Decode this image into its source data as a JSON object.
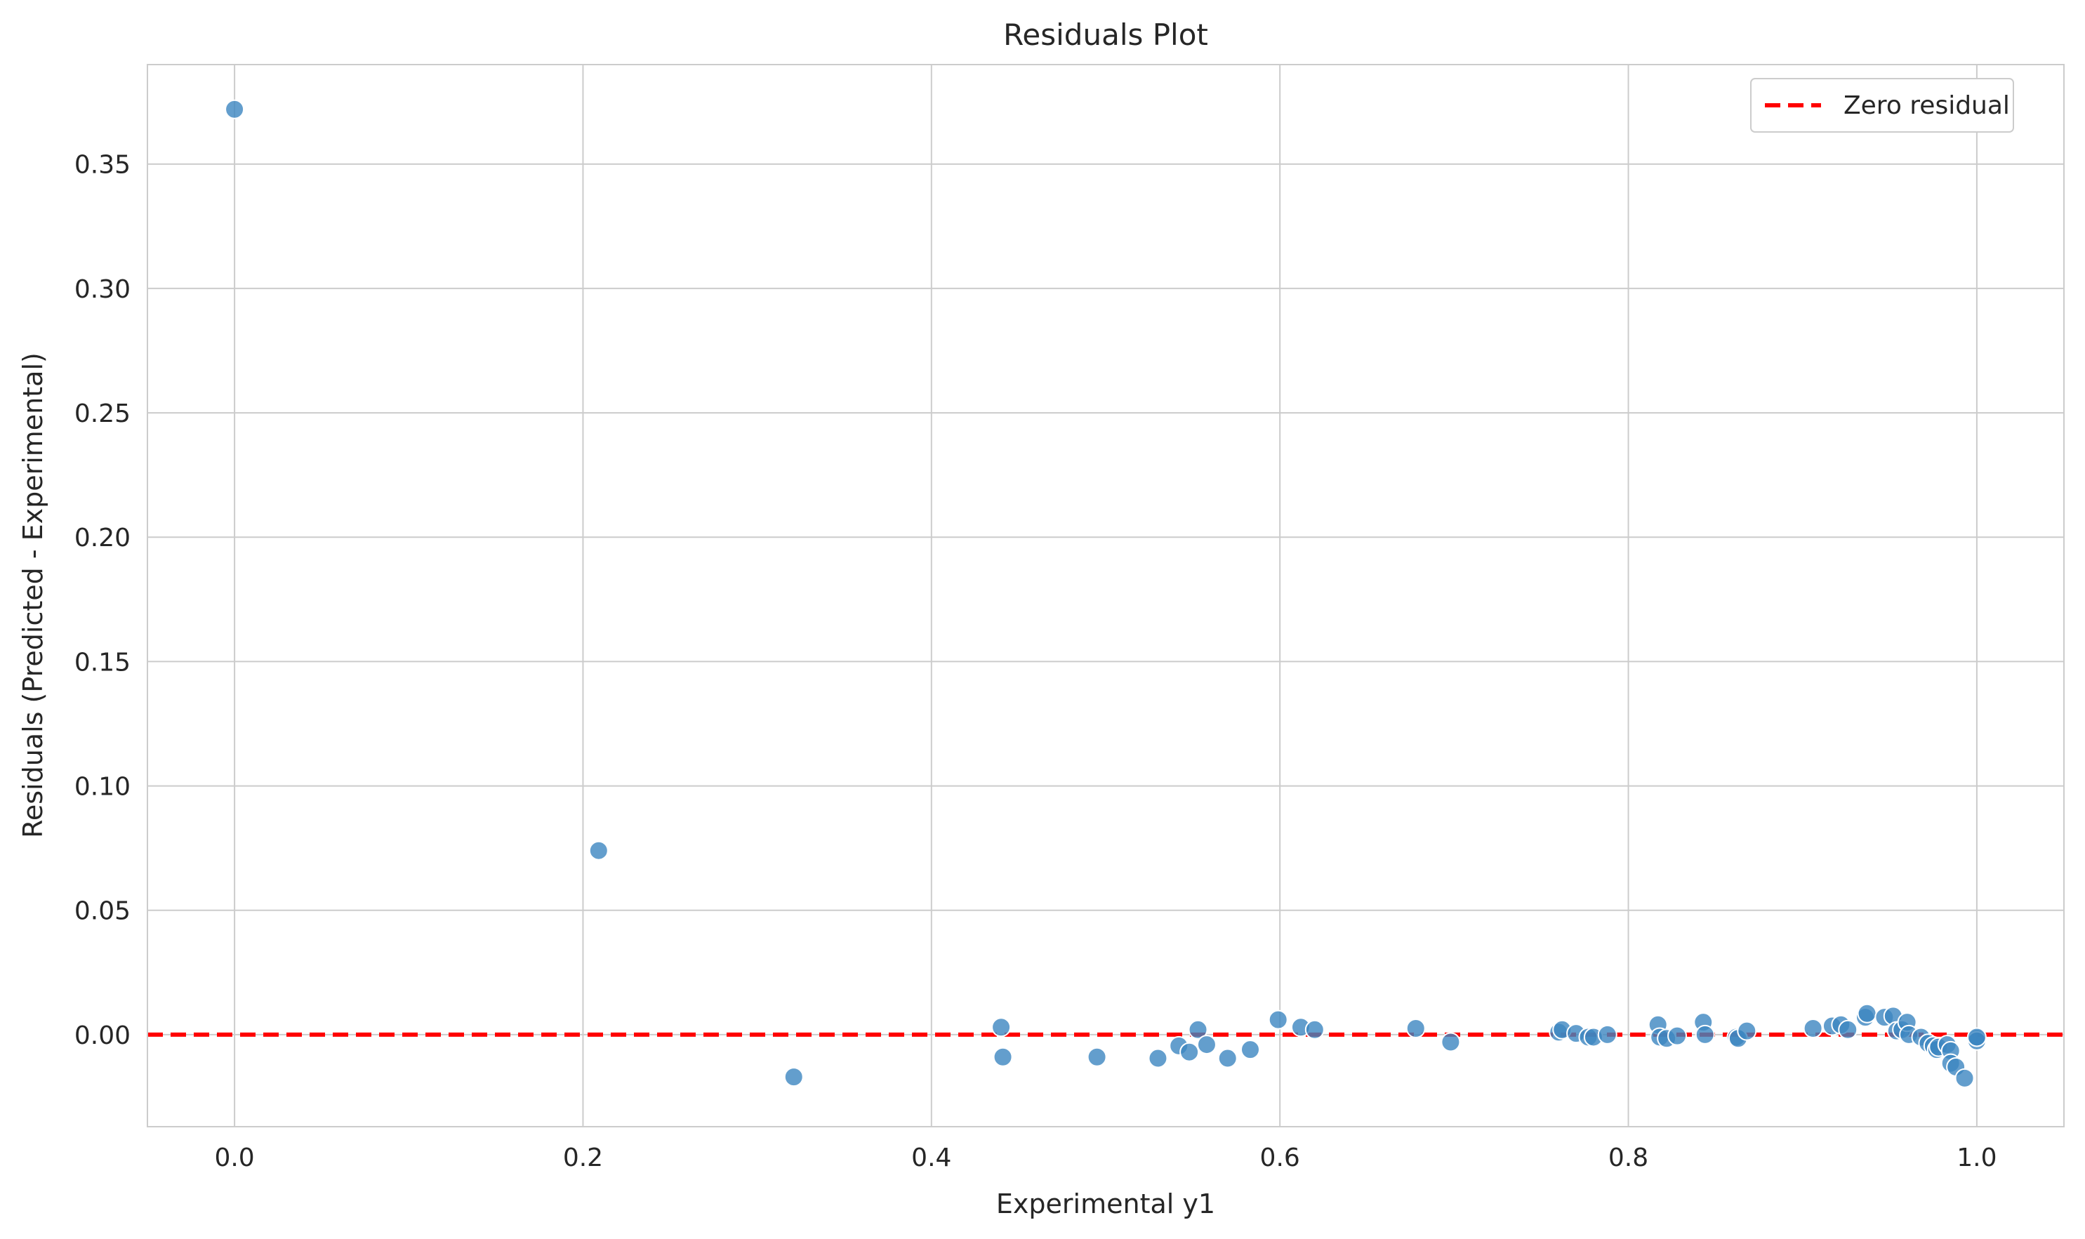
{
  "chart_data": {
    "type": "scatter",
    "title": "Residuals Plot",
    "xlabel": "Experimental y1",
    "ylabel": "Residuals (Predicted - Experimental)",
    "xlim": [
      -0.05,
      1.05
    ],
    "ylim": [
      -0.037,
      0.39
    ],
    "xticks": [
      0.0,
      0.2,
      0.4,
      0.6,
      0.8,
      1.0
    ],
    "xtick_labels": [
      "0.0",
      "0.2",
      "0.4",
      "0.6",
      "0.8",
      "1.0"
    ],
    "yticks": [
      0.0,
      0.05,
      0.1,
      0.15,
      0.2,
      0.25,
      0.3,
      0.35
    ],
    "ytick_labels": [
      "0.00",
      "0.05",
      "0.10",
      "0.15",
      "0.20",
      "0.25",
      "0.30",
      "0.35"
    ],
    "grid": true,
    "legend_position": "top-right",
    "reference_line": {
      "label": "Zero residual",
      "y": 0,
      "color": "#ff0000",
      "style": "dashed"
    },
    "point_color": "#3c86c0",
    "points": [
      [
        0.0,
        0.372
      ],
      [
        0.209,
        0.074
      ],
      [
        0.321,
        -0.017
      ],
      [
        0.44,
        0.003
      ],
      [
        0.441,
        -0.009
      ],
      [
        0.495,
        -0.009
      ],
      [
        0.53,
        -0.0095
      ],
      [
        0.542,
        -0.0045
      ],
      [
        0.548,
        -0.007
      ],
      [
        0.553,
        0.002
      ],
      [
        0.558,
        -0.004
      ],
      [
        0.57,
        -0.0095
      ],
      [
        0.583,
        -0.006
      ],
      [
        0.599,
        0.006
      ],
      [
        0.612,
        0.003
      ],
      [
        0.62,
        0.002
      ],
      [
        0.678,
        0.0025
      ],
      [
        0.698,
        -0.003
      ],
      [
        0.76,
        0.001
      ],
      [
        0.762,
        0.002
      ],
      [
        0.77,
        0.0005
      ],
      [
        0.777,
        -0.001
      ],
      [
        0.78,
        -0.001
      ],
      [
        0.788,
        0.0
      ],
      [
        0.817,
        0.004
      ],
      [
        0.818,
        -0.001
      ],
      [
        0.822,
        -0.0015
      ],
      [
        0.828,
        -0.0005
      ],
      [
        0.843,
        0.005
      ],
      [
        0.844,
        0.0
      ],
      [
        0.862,
        -0.001
      ],
      [
        0.863,
        -0.0015
      ],
      [
        0.868,
        0.0015
      ],
      [
        0.906,
        0.0025
      ],
      [
        0.917,
        0.0035
      ],
      [
        0.922,
        0.004
      ],
      [
        0.926,
        0.002
      ],
      [
        0.936,
        0.007
      ],
      [
        0.937,
        0.0085
      ],
      [
        0.947,
        0.007
      ],
      [
        0.952,
        0.0075
      ],
      [
        0.954,
        0.0015
      ],
      [
        0.957,
        0.002
      ],
      [
        0.96,
        0.005
      ],
      [
        0.961,
        0.0
      ],
      [
        0.968,
        -0.001
      ],
      [
        0.972,
        -0.0035
      ],
      [
        0.975,
        -0.0045
      ],
      [
        0.977,
        -0.006
      ],
      [
        0.978,
        -0.005
      ],
      [
        0.983,
        -0.004
      ],
      [
        0.985,
        -0.0065
      ],
      [
        0.985,
        -0.0115
      ],
      [
        0.988,
        -0.013
      ],
      [
        0.993,
        -0.0175
      ],
      [
        1.0,
        -0.0015
      ],
      [
        1.0,
        -0.0025
      ],
      [
        1.0,
        -0.001
      ]
    ]
  }
}
